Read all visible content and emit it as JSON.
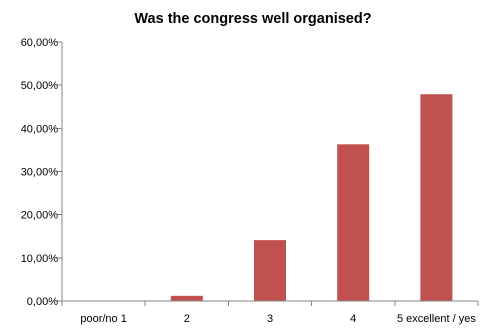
{
  "chart_data": {
    "type": "bar",
    "title": "Was the congress well organised?",
    "xlabel": "",
    "ylabel": "",
    "categories": [
      "poor/no 1",
      "2",
      "3",
      "4",
      "5 excellent / yes"
    ],
    "values": [
      0.0,
      1.2,
      14.1,
      36.3,
      47.9
    ],
    "value_unit": "percent",
    "ylim": [
      0,
      60
    ],
    "yticks": [
      0,
      10,
      20,
      30,
      40,
      50,
      60
    ],
    "ytick_labels": [
      "0,00%",
      "10,00%",
      "20,00%",
      "30,00%",
      "40,00%",
      "50,00%",
      "60,00%"
    ],
    "grid": false,
    "legend": "none",
    "bar_color": "#c0504d"
  }
}
